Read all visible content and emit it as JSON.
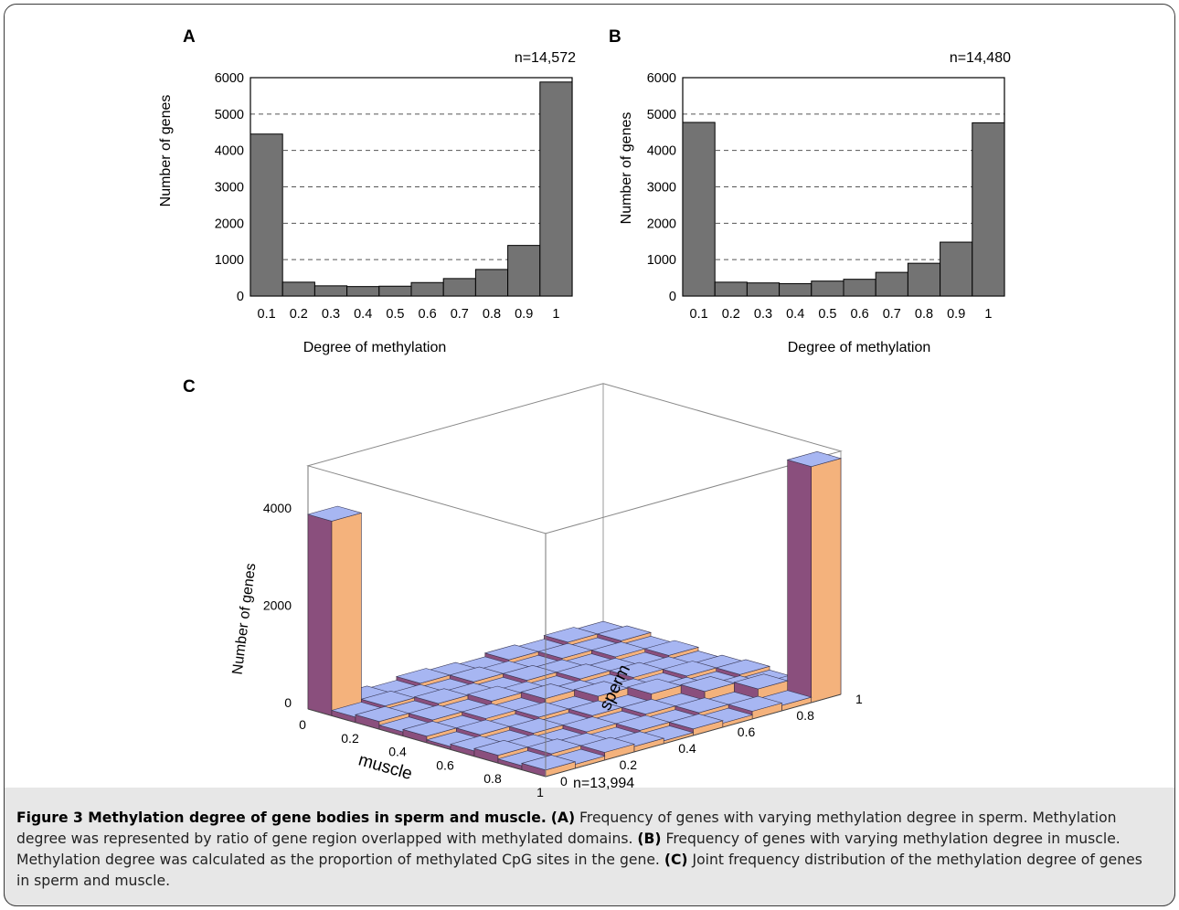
{
  "chart_data": [
    {
      "panel": "A",
      "type": "bar",
      "annotation": "n=14,572",
      "xlabel": "Degree of methylation",
      "ylabel": "Number of genes",
      "categories": [
        "0.1",
        "0.2",
        "0.3",
        "0.4",
        "0.5",
        "0.6",
        "0.7",
        "0.8",
        "0.9",
        "1"
      ],
      "values": [
        4450,
        380,
        280,
        260,
        270,
        370,
        480,
        730,
        1390,
        5880
      ],
      "ylim": [
        0,
        6000
      ],
      "yticks": [
        "0",
        "1000",
        "2000",
        "3000",
        "4000",
        "5000",
        "6000"
      ],
      "grid": "dashed horizontal",
      "bar_color": "#737373"
    },
    {
      "panel": "B",
      "type": "bar",
      "annotation": "n=14,480",
      "xlabel": "Degree of methylation",
      "ylabel": "Number of genes",
      "categories": [
        "0.1",
        "0.2",
        "0.3",
        "0.4",
        "0.5",
        "0.6",
        "0.7",
        "0.8",
        "0.9",
        "1"
      ],
      "values": [
        4770,
        380,
        360,
        340,
        410,
        460,
        650,
        900,
        1480,
        4760
      ],
      "ylim": [
        0,
        6000
      ],
      "yticks": [
        "0",
        "1000",
        "2000",
        "3000",
        "4000",
        "5000",
        "6000"
      ],
      "grid": "dashed horizontal",
      "bar_color": "#737373"
    },
    {
      "panel": "C",
      "type": "bar3d",
      "annotation": "n=13,994",
      "xlabel": "muscle",
      "ylabel": "sperm",
      "zlabel": "Number of genes",
      "x_ticks": [
        "0",
        "0.2",
        "0.4",
        "0.6",
        "0.8",
        "1"
      ],
      "y_ticks": [
        "0",
        "0.2",
        "0.4",
        "0.6",
        "0.8",
        "1"
      ],
      "z_ticks": [
        "0",
        "2000",
        "4000"
      ],
      "zlim": [
        0,
        5000
      ],
      "highlights": [
        {
          "muscle": 0.1,
          "sperm": 0.1,
          "value": 4000
        },
        {
          "muscle": 1,
          "sperm": 1,
          "value": 4850
        }
      ],
      "colors": {
        "top": "#a7b6f2",
        "front": "#8a4f7d",
        "side": "#f4b27c"
      }
    }
  ],
  "panel_labels": {
    "a": "A",
    "b": "B",
    "c": "C"
  },
  "caption": {
    "title": "Figure 3 Methylation degree of gene bodies in sperm and muscle.",
    "a_tag": "(A)",
    "a_text": " Frequency of genes with varying methylation degree in sperm. Methylation degree was represented by ratio of gene region overlapped with methylated domains. ",
    "b_tag": "(B)",
    "b_text": " Frequency of genes with varying methylation degree in muscle. Methylation degree was calculated as the proportion of methylated CpG sites in the gene. ",
    "c_tag": "(C)",
    "c_text": " Joint frequency distribution of the methylation degree of genes in sperm and muscle."
  }
}
